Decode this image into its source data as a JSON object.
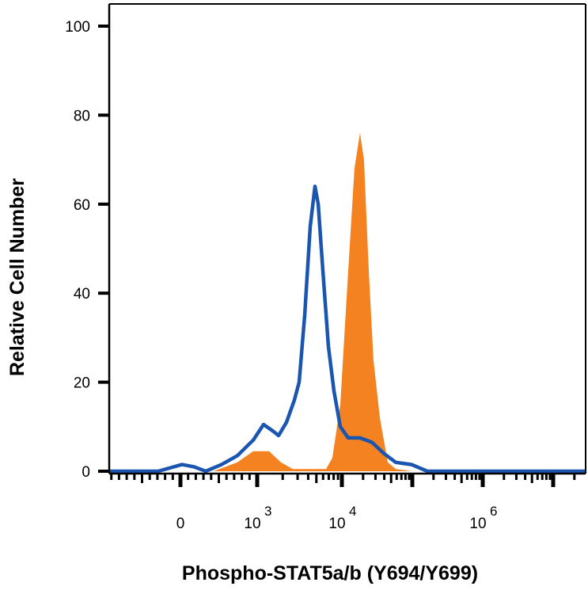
{
  "chart_data": {
    "type": "area",
    "title": "",
    "xlabel": "Phospho-STAT5a/b (Y694/Y699)",
    "ylabel": "Relative Cell Number",
    "x_scale": "biexponential",
    "xlim": [
      -930,
      29000000
    ],
    "ylim": [
      0,
      100
    ],
    "yticks": [
      0,
      20,
      40,
      60,
      80,
      100
    ],
    "ytick_labels": [
      "0",
      "20",
      "40",
      "60",
      "80",
      "100"
    ],
    "xticks": [
      {
        "value": 0,
        "base": "0",
        "exp": ""
      },
      {
        "value": 1000,
        "base": "10",
        "exp": "3"
      },
      {
        "value": 10000,
        "base": "10",
        "exp": "4"
      },
      {
        "value": 1000000,
        "base": "10",
        "exp": "6"
      }
    ],
    "grid": false,
    "series": [
      {
        "style": "filled",
        "color": "#f58220",
        "x": [
          -930,
          433,
          742,
          948,
          1381,
          1905,
          2635,
          5023,
          6500,
          7724,
          9580,
          12300,
          15100,
          18100,
          20600,
          24100,
          28100,
          34600,
          44900,
          58100,
          97500,
          29000000
        ],
        "y": [
          0,
          0,
          2,
          4.5,
          4.5,
          2,
          0.5,
          0.5,
          0.5,
          3,
          15,
          45,
          68,
          76,
          70,
          45,
          25,
          12,
          2,
          0.5,
          0,
          0
        ]
      },
      {
        "style": "line",
        "color": "#1a56b0",
        "x": [
          -930,
          -289,
          21,
          175,
          330,
          536,
          742,
          948,
          1189,
          1538,
          1786,
          2218,
          2750,
          3126,
          3636,
          4227,
          4810,
          5253,
          5970,
          6930,
          8067,
          9580,
          12300,
          18100,
          26700,
          39400,
          58100,
          97500,
          163000,
          29000000
        ],
        "y": [
          0,
          0,
          1.5,
          1,
          0,
          1.5,
          3.5,
          7,
          10.5,
          9,
          8,
          11,
          16,
          20,
          35,
          55,
          64,
          60,
          45,
          28,
          18,
          10,
          7.5,
          7.5,
          6.5,
          4,
          2,
          1.5,
          0,
          0
        ]
      }
    ]
  }
}
